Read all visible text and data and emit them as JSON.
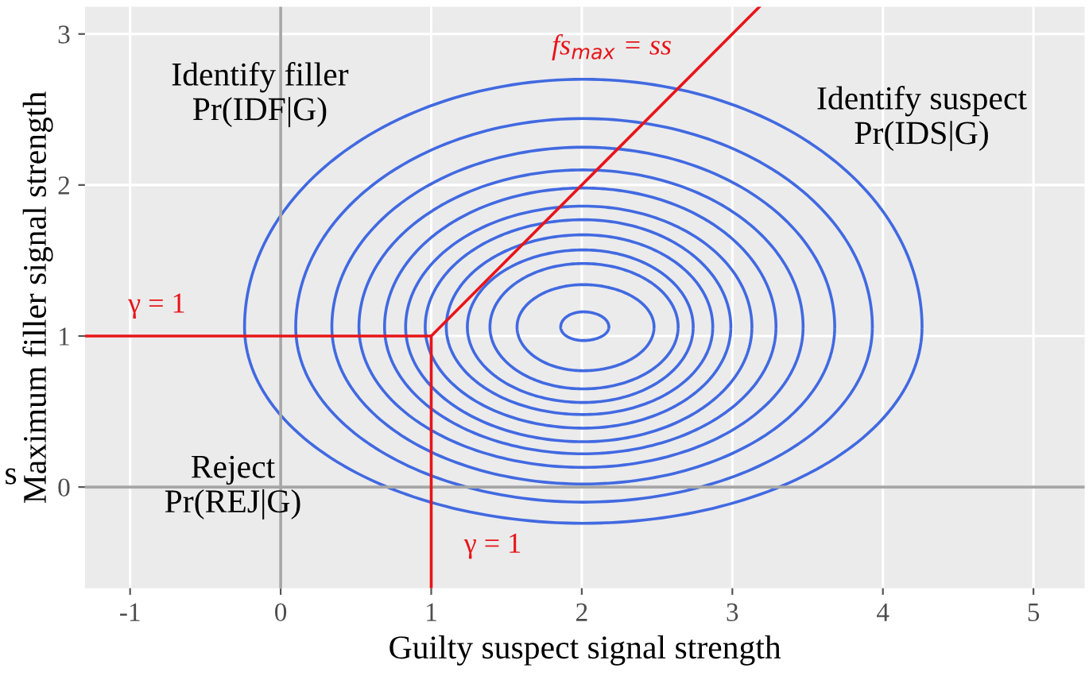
{
  "chart_data": {
    "type": "line",
    "xlabel": "Guilty suspect signal strength",
    "ylabel": "Maximum filler signal strength",
    "xlim": [
      -1.3,
      5.34
    ],
    "ylim": [
      -0.67,
      3.18
    ],
    "xticks": [
      -1,
      0,
      1,
      2,
      3,
      4,
      5
    ],
    "yticks": [
      0,
      1,
      2,
      3
    ],
    "grid": true,
    "line_style": "solid",
    "series": [
      {
        "color": "#a6a6a6",
        "x": [
          0,
          0
        ],
        "values": [
          -0.67,
          3.18
        ]
      },
      {
        "color": "#a6a6a6",
        "x": [
          -1.3,
          5.34
        ],
        "values": [
          0,
          0
        ]
      },
      {
        "color": "#e8141a",
        "x": [
          -1.3,
          1,
          1
        ],
        "values": [
          1,
          1,
          -0.67
        ]
      },
      {
        "color": "#e8141a",
        "x": [
          1,
          3.18
        ],
        "values": [
          1,
          3.18
        ]
      }
    ],
    "annotations": [
      "Identify filler\nPr(IDF|G)",
      "Identify suspect\nPr(IDS|G)",
      "Reject\nPr(REJ|G)",
      "γ = 1",
      "γ = 1",
      "fs$_{max}$ = ss",
      "s"
    ]
  }
}
